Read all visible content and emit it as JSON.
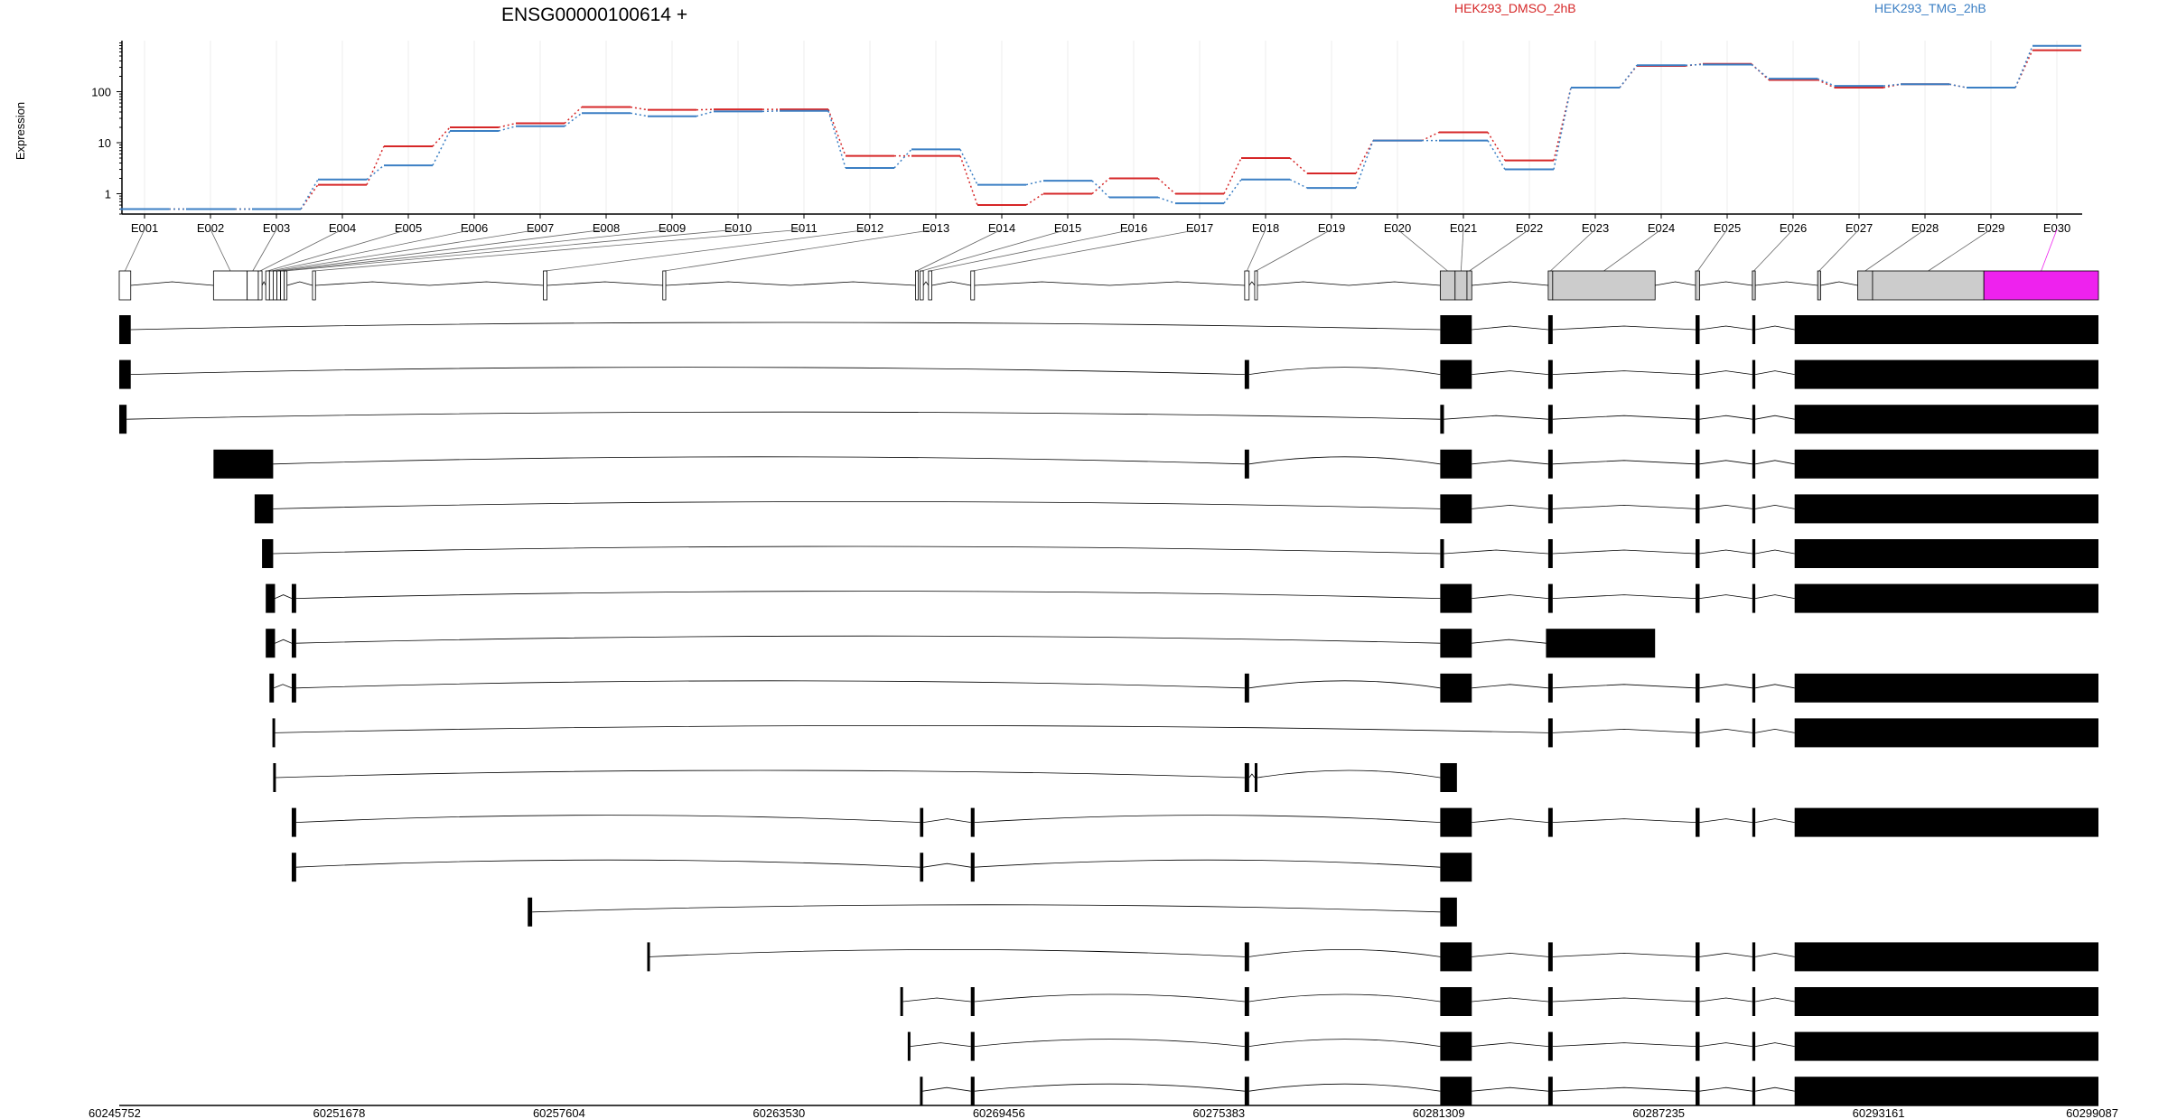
{
  "title": "ENSG00000100614 +",
  "legend": [
    {
      "name": "HEK293_DMSO_2hB",
      "color": "#d62728"
    },
    {
      "name": "HEK293_TMG_2hB",
      "color": "#3b7fc4"
    }
  ],
  "y_axis": {
    "label": "Expression",
    "ticks": [
      "1",
      "10",
      "100"
    ],
    "scale": "log"
  },
  "colors": {
    "highlight": "#ee22ee",
    "gene_model": "#cccccc",
    "transcript": "#000000",
    "dmso": "#d62728",
    "tmg": "#3b7fc4"
  },
  "exon_labels": [
    "E001",
    "E002",
    "E003",
    "E004",
    "E005",
    "E006",
    "E007",
    "E008",
    "E009",
    "E010",
    "E011",
    "E012",
    "E013",
    "E014",
    "E015",
    "E016",
    "E017",
    "E018",
    "E019",
    "E020",
    "E021",
    "E022",
    "E023",
    "E024",
    "E025",
    "E026",
    "E027",
    "E028",
    "E029",
    "E030"
  ],
  "coordinates": [
    "60245752",
    "60251678",
    "60257604",
    "60263530",
    "60269456",
    "60275383",
    "60281309",
    "60287235",
    "60293161",
    "60299087"
  ],
  "highlighted_exon": "E030",
  "chart_data": {
    "type": "line",
    "x": [
      "E001",
      "E002",
      "E003",
      "E004",
      "E005",
      "E006",
      "E007",
      "E008",
      "E009",
      "E010",
      "E011",
      "E012",
      "E013",
      "E014",
      "E015",
      "E016",
      "E017",
      "E018",
      "E019",
      "E020",
      "E021",
      "E022",
      "E023",
      "E024",
      "E025",
      "E026",
      "E027",
      "E028",
      "E029",
      "E030"
    ],
    "yscale": "log",
    "series": [
      {
        "name": "HEK293_DMSO_2hB",
        "values": [
          0.5,
          0.5,
          0.5,
          1.5,
          8.5,
          20,
          24,
          50,
          44,
          45,
          45,
          5.5,
          5.5,
          0.6,
          1.0,
          2.0,
          1.0,
          5.0,
          2.5,
          11,
          16,
          4.5,
          120,
          320,
          350,
          170,
          120,
          140,
          120,
          650
        ]
      },
      {
        "name": "HEK293_TMG_2hB",
        "values": [
          0.5,
          0.5,
          0.5,
          1.9,
          3.6,
          17,
          21,
          38,
          33,
          41,
          42,
          3.2,
          7.4,
          1.5,
          1.8,
          0.85,
          0.65,
          1.9,
          1.3,
          11,
          11,
          3.0,
          120,
          330,
          340,
          180,
          130,
          140,
          120,
          790
        ]
      }
    ]
  }
}
